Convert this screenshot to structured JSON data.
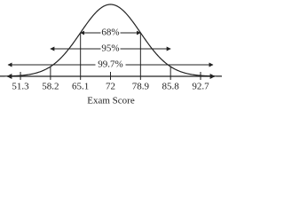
{
  "chart_data": {
    "type": "normal",
    "x_label": "Exam Score",
    "xticks": [
      51.3,
      58.2,
      65.1,
      72,
      78.9,
      85.8,
      92.7
    ],
    "xlim": [
      46.6,
      97.6
    ],
    "annotations": [
      {
        "label": "68%",
        "from": 65.1,
        "to": 78.9
      },
      {
        "label": "95%",
        "from": 58.2,
        "to": 85.8
      },
      {
        "label": "99.7%",
        "from": 51.3,
        "to": 92.7
      }
    ],
    "color": "#222222"
  }
}
